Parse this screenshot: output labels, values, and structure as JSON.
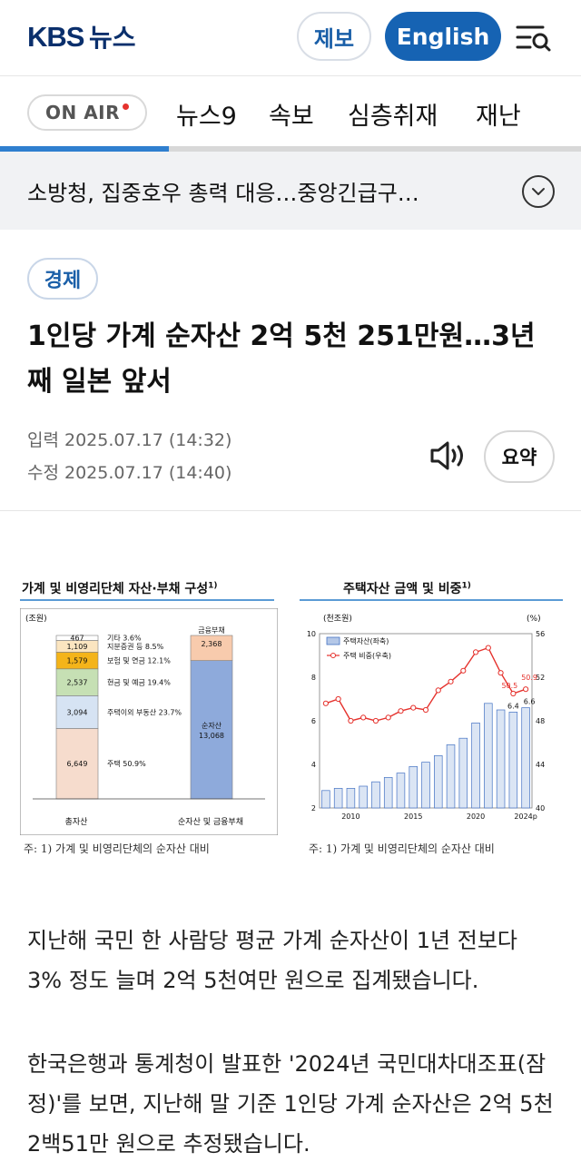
{
  "header": {
    "logo": "KBS 뉴스",
    "report_label": "제보",
    "english_label": "English",
    "menu_icon": "menu-search-icon"
  },
  "nav": {
    "onair_label": "ON AIR",
    "items": [
      "뉴스9",
      "속보",
      "심층취재",
      "재난"
    ],
    "scroll_progress": 0.29
  },
  "breaking": {
    "text": "소방청, 집중호우 총력 대응…중앙긴급구…",
    "expand_icon": "chevron-down-icon"
  },
  "article": {
    "category": "경제",
    "headline": "1인당 가계 순자산 2억 5천 251만원…3년째 일본 앞서",
    "input_time": "입력 2025.07.17 (14:32)",
    "edit_time": "수정 2025.07.17 (14:40)",
    "speaker_icon": "speaker-icon",
    "summary_label": "요약",
    "paragraphs": [
      "지난해 국민 한 사람당 평균 가계 순자산이 1년 전보다 3% 정도 늘며 2억 5천여만 원으로 집계됐습니다.",
      "한국은행과 통계청이 발표한 '2024년 국민대차대조표(잠정)'를 보면, 지난해 말 기준 1인당 가계 순자산은 2억 5천2백51만 원으로 추정됐습니다."
    ]
  },
  "chart_data": [
    {
      "type": "bar",
      "title": "가계 및 비영리단체 자산·부채 구성",
      "title_note": "1)",
      "unit": "(조원)",
      "categories": [
        "총자산",
        "순자산 및 금융부채"
      ],
      "series_total_assets": [
        {
          "name": "주택 50.9%",
          "value": 6649,
          "color": "#f6dccd"
        },
        {
          "name": "주택이외 부동산 23.7%",
          "value": 3094,
          "color": "#d6e3f3"
        },
        {
          "name": "현금 및 예금 19.4%",
          "value": 2537,
          "color": "#c6e0b4"
        },
        {
          "name": "보험 및 연금 12.1%",
          "value": 1579,
          "color": "#f4b41a"
        },
        {
          "name": "지분증권 등 8.5%",
          "value": 1109,
          "color": "#fbe5c0"
        },
        {
          "name": "기타 3.6%",
          "value": 467,
          "color": "#ffffff"
        }
      ],
      "series_liabilities": [
        {
          "name": "순자산",
          "value": 13068,
          "color": "#8eaadb"
        },
        {
          "name": "금융부채",
          "value": 2368,
          "color": "#f8cbad"
        }
      ],
      "note": "주: 1) 가계 및 비영리단체의 순자산 대비"
    },
    {
      "type": "bar+line",
      "title": "주택자산 금액 및 비중",
      "title_note": "1)",
      "left_unit": "(천조원)",
      "right_unit": "(%)",
      "x": [
        2008,
        2009,
        2010,
        2011,
        2012,
        2013,
        2014,
        2015,
        2016,
        2017,
        2018,
        2019,
        2020,
        2021,
        2022,
        2023,
        2024
      ],
      "x_ticks": [
        "2010",
        "2015",
        "2020",
        "2024p"
      ],
      "series": [
        {
          "name": "주택자산(좌축)",
          "axis": "left",
          "values": [
            2.8,
            2.9,
            2.9,
            3.0,
            3.2,
            3.4,
            3.6,
            3.9,
            4.1,
            4.4,
            4.9,
            5.2,
            5.9,
            6.8,
            6.5,
            6.4,
            6.6
          ]
        },
        {
          "name": "주택 비중(우축)",
          "axis": "right",
          "values": [
            49.6,
            50.0,
            48.0,
            48.3,
            48.0,
            48.3,
            48.9,
            49.2,
            49.0,
            50.8,
            51.6,
            52.6,
            54.3,
            54.7,
            52.4,
            50.5,
            50.9
          ]
        }
      ],
      "labels": {
        "bar_2023": "6.4",
        "bar_2024": "6.6",
        "line_2023": "50.5",
        "line_2024": "50.9"
      },
      "ylim_left": [
        2,
        10
      ],
      "ylim_right": [
        40,
        56
      ],
      "yticks_left": [
        "2",
        "4",
        "6",
        "8",
        "10"
      ],
      "yticks_right": [
        "40",
        "44",
        "48",
        "52",
        "56"
      ],
      "note": "주: 1) 가계 및 비영리단체의 순자산 대비"
    }
  ]
}
